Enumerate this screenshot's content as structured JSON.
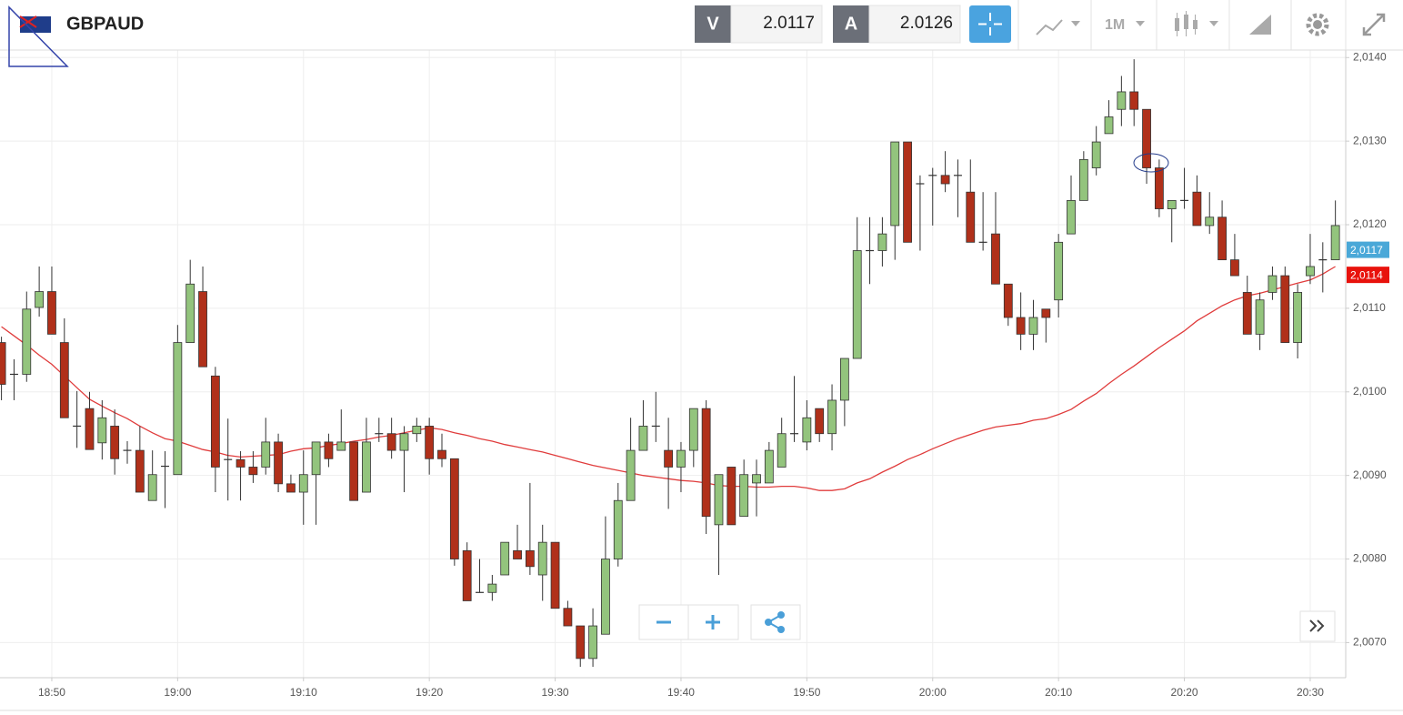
{
  "header": {
    "symbol": "GBPAUD",
    "bid_label": "V",
    "bid": 2.0117,
    "ask_label": "A",
    "ask": 2.0126,
    "timeframe": "1M"
  },
  "chart_data": {
    "type": "candlestick",
    "categories": [
      null,
      null,
      null,
      null,
      "18:50",
      null,
      null,
      null,
      null,
      null,
      null,
      null,
      null,
      null,
      "19:00",
      null,
      null,
      null,
      null,
      null,
      null,
      null,
      null,
      null,
      "19:10",
      null,
      null,
      null,
      null,
      null,
      null,
      null,
      null,
      null,
      "19:20",
      null,
      null,
      null,
      null,
      null,
      null,
      null,
      null,
      null,
      "19:30",
      null,
      null,
      null,
      null,
      null,
      null,
      null,
      null,
      null,
      "19:40",
      null,
      null,
      null,
      null,
      null,
      null,
      null,
      null,
      null,
      "19:50",
      null,
      null,
      null,
      null,
      null,
      null,
      null,
      null,
      null,
      "20:00",
      null,
      null,
      null,
      null,
      null,
      null,
      null,
      null,
      null,
      "20:10",
      null,
      null,
      null,
      null,
      null,
      null,
      null,
      null,
      null,
      "20:20",
      null,
      null,
      null,
      null,
      null,
      null,
      null,
      null,
      null,
      "20:30",
      null,
      null
    ],
    "open": [
      2.01059,
      2.01021,
      2.01021,
      2.01101,
      2.0112,
      2.01059,
      2.00959,
      2.0098,
      2.00939,
      2.00959,
      2.0093,
      2.0093,
      2.0087,
      2.00911,
      2.00901,
      2.01059,
      2.0112,
      2.01019,
      2.00919,
      2.00919,
      2.0091,
      2.0091,
      2.0094,
      2.0089,
      2.0088,
      2.00901,
      2.0094,
      2.0093,
      2.0094,
      2.0088,
      2.0095,
      2.0095,
      2.0093,
      2.0095,
      2.00959,
      2.0093,
      2.0092,
      2.0081,
      2.0076,
      2.0076,
      2.00781,
      2.0081,
      2.0081,
      2.00781,
      2.0082,
      2.00741,
      2.0072,
      2.00681,
      2.0071,
      2.008,
      2.0087,
      2.0093,
      2.00959,
      2.0093,
      2.0091,
      2.0093,
      2.0098,
      2.00841,
      2.0091,
      2.00851,
      2.00891,
      2.00891,
      2.0091,
      2.0095,
      2.0094,
      2.0098,
      2.0095,
      2.0099,
      2.0104,
      2.01169,
      2.01169,
      2.01199,
      2.01299,
      2.01249,
      2.01259,
      2.01259,
      2.01259,
      2.01239,
      2.01179,
      2.01189,
      2.01129,
      2.01089,
      2.01069,
      2.01099,
      2.0111,
      2.01189,
      2.01229,
      2.01268,
      2.01309,
      2.01338,
      2.01359,
      2.01338,
      2.01268,
      2.01219,
      2.01229,
      2.01239,
      2.01199,
      2.01209,
      2.01158,
      2.01119,
      2.01069,
      2.01119,
      2.01139,
      2.01059,
      2.01139,
      2.01158,
      2.01158
    ],
    "high": [
      2.01066,
      2.01039,
      2.0112,
      2.0115,
      2.0115,
      2.01088,
      2.01001,
      2.01,
      2.0099,
      2.00979,
      2.00941,
      2.00959,
      2.0093,
      2.00929,
      2.0108,
      2.01158,
      2.0115,
      2.0103,
      2.00968,
      2.00929,
      2.00929,
      2.00969,
      2.0095,
      2.00901,
      2.0093,
      2.0094,
      2.0095,
      2.00979,
      2.0094,
      2.00969,
      2.00969,
      2.00969,
      2.00959,
      2.00969,
      2.00969,
      2.0095,
      2.0092,
      2.0082,
      2.008,
      2.00781,
      2.0082,
      2.00841,
      2.00891,
      2.00841,
      2.0082,
      2.0075,
      2.0072,
      2.00741,
      2.00851,
      2.00891,
      2.00969,
      2.0099,
      2.01,
      2.00969,
      2.0094,
      2.0098,
      2.0099,
      2.00901,
      2.0091,
      2.00919,
      2.00919,
      2.0094,
      2.00969,
      2.01019,
      2.0099,
      2.0098,
      2.01009,
      2.0104,
      2.01209,
      2.01209,
      2.01209,
      2.01299,
      2.01299,
      2.01259,
      2.01268,
      2.01288,
      2.01278,
      2.01278,
      2.01239,
      2.01239,
      2.01129,
      2.01119,
      2.0111,
      2.01099,
      2.01189,
      2.01259,
      2.01288,
      2.01318,
      2.01349,
      2.01378,
      2.01398,
      2.01338,
      2.01278,
      2.01229,
      2.01268,
      2.01259,
      2.01239,
      2.01229,
      2.01189,
      2.01139,
      2.01119,
      2.0115,
      2.0115,
      2.01129,
      2.01189,
      2.01179,
      2.01229
    ],
    "low": [
      2.0099,
      2.0099,
      2.01012,
      2.0109,
      2.01069,
      2.00969,
      2.00933,
      2.00931,
      2.00919,
      2.00901,
      2.00914,
      2.0088,
      2.0087,
      2.00861,
      2.00901,
      2.01059,
      2.0103,
      2.0088,
      2.0087,
      2.0087,
      2.00891,
      2.00901,
      2.0088,
      2.0088,
      2.00841,
      2.00841,
      2.0091,
      2.0093,
      2.0087,
      2.0088,
      2.0094,
      2.0092,
      2.0088,
      2.0094,
      2.00901,
      2.0091,
      2.00792,
      2.0075,
      2.0076,
      2.0075,
      2.00781,
      2.008,
      2.00781,
      2.0075,
      2.00741,
      2.0072,
      2.00671,
      2.00671,
      2.0071,
      2.00791,
      2.0087,
      2.0093,
      2.0094,
      2.0086,
      2.0088,
      2.0091,
      2.0083,
      2.00781,
      2.00841,
      2.00851,
      2.00851,
      2.00891,
      2.0091,
      2.0094,
      2.0093,
      2.0094,
      2.0093,
      2.00959,
      2.0104,
      2.01129,
      2.0115,
      2.01158,
      2.01179,
      2.01169,
      2.01199,
      2.01239,
      2.01209,
      2.01179,
      2.01169,
      2.01129,
      2.01079,
      2.0105,
      2.0105,
      2.01059,
      2.01089,
      2.01189,
      2.01229,
      2.01259,
      2.01309,
      2.01318,
      2.01318,
      2.01249,
      2.01209,
      2.01179,
      2.01219,
      2.01199,
      2.01189,
      2.01158,
      2.01139,
      2.01069,
      2.0105,
      2.0111,
      2.01059,
      2.0104,
      2.01129,
      2.01119,
      2.01158
    ],
    "close": [
      2.01009,
      2.01021,
      2.01099,
      2.0112,
      2.01069,
      2.00969,
      2.00959,
      2.00931,
      2.00969,
      2.0092,
      2.0093,
      2.0088,
      2.00901,
      2.00911,
      2.01059,
      2.01129,
      2.0103,
      2.0091,
      2.00919,
      2.0091,
      2.00901,
      2.0094,
      2.0089,
      2.0088,
      2.00901,
      2.0094,
      2.0092,
      2.0094,
      2.0087,
      2.0094,
      2.0095,
      2.0093,
      2.0095,
      2.00959,
      2.0092,
      2.0092,
      2.008,
      2.0075,
      2.0076,
      2.0077,
      2.0082,
      2.008,
      2.00791,
      2.0082,
      2.00741,
      2.0072,
      2.00681,
      2.0072,
      2.008,
      2.0087,
      2.0093,
      2.00959,
      2.00959,
      2.0091,
      2.0093,
      2.0098,
      2.00851,
      2.00901,
      2.00841,
      2.00901,
      2.00901,
      2.0093,
      2.0095,
      2.0095,
      2.00969,
      2.0095,
      2.0099,
      2.0104,
      2.01169,
      2.01169,
      2.01189,
      2.01299,
      2.01179,
      2.01249,
      2.01259,
      2.01249,
      2.01259,
      2.01179,
      2.01179,
      2.01129,
      2.01089,
      2.01069,
      2.01089,
      2.01089,
      2.01179,
      2.01229,
      2.01278,
      2.01299,
      2.01329,
      2.01359,
      2.01338,
      2.01268,
      2.01219,
      2.01229,
      2.01229,
      2.01199,
      2.01209,
      2.01158,
      2.01139,
      2.01069,
      2.0111,
      2.01139,
      2.01059,
      2.01119,
      2.0115,
      2.01158,
      2.01199
    ],
    "up_color": "#93c47d",
    "down_color": "#b0301a",
    "moving_average": {
      "color": "#e03c3c",
      "values": [
        2.01078,
        2.01067,
        2.01056,
        2.01044,
        2.01033,
        2.01019,
        2.01005,
        2.00991,
        2.00983,
        2.00975,
        2.00968,
        2.00959,
        2.00951,
        2.00944,
        2.00941,
        2.00936,
        2.00931,
        2.00928,
        2.00924,
        2.00922,
        2.00923,
        2.00924,
        2.00925,
        2.00929,
        2.00932,
        2.00933,
        2.00936,
        2.00938,
        2.00941,
        2.00943,
        2.00946,
        2.00948,
        2.00951,
        2.00954,
        2.00957,
        2.00955,
        2.00951,
        2.00948,
        2.00944,
        2.00941,
        2.00937,
        2.00934,
        2.00931,
        2.00928,
        2.00924,
        2.0092,
        2.00916,
        2.00912,
        2.00909,
        2.00906,
        2.00903,
        2.009,
        2.00898,
        2.00896,
        2.00894,
        2.00893,
        2.00891,
        2.00888,
        2.00887,
        2.00887,
        2.00886,
        2.00886,
        2.00887,
        2.00887,
        2.00885,
        2.00882,
        2.00882,
        2.00884,
        2.00891,
        2.00896,
        2.00904,
        2.00911,
        2.00919,
        2.00925,
        2.00932,
        2.00938,
        2.00944,
        2.00949,
        2.00954,
        2.00958,
        2.0096,
        2.00962,
        2.00966,
        2.00968,
        2.00973,
        2.00979,
        2.00989,
        2.00998,
        2.0101,
        2.01021,
        2.01031,
        2.01042,
        2.01053,
        2.01063,
        2.01073,
        2.01085,
        2.01094,
        2.01103,
        2.0111,
        2.01115,
        2.01118,
        2.01122,
        2.01126,
        2.0113,
        2.01134,
        2.01141,
        2.0115
      ]
    },
    "ylim": [
      2.00658,
      2.01409
    ],
    "yticks": [
      {
        "value": 2.007,
        "label": "2,0070"
      },
      {
        "value": 2.008,
        "label": "2,0080"
      },
      {
        "value": 2.009,
        "label": "2,0090"
      },
      {
        "value": 2.01,
        "label": "2,0100"
      },
      {
        "value": 2.011,
        "label": "2,0110"
      },
      {
        "value": 2.012,
        "label": "2,0120"
      },
      {
        "value": 2.013,
        "label": "2,0130"
      },
      {
        "value": 2.014,
        "label": "2,0140"
      }
    ],
    "price_tags": [
      {
        "value": 2.0117,
        "label": "2,0117",
        "color": "#4aa8d8"
      },
      {
        "value": 2.0114,
        "label": "2,0114",
        "color": "#e8120c"
      }
    ],
    "grid": true
  }
}
